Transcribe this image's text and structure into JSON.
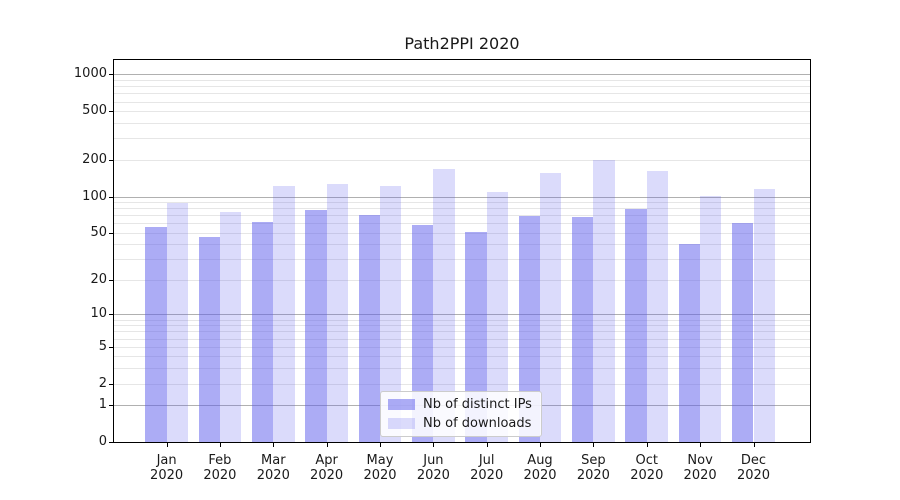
{
  "title": "Path2PPI 2020",
  "legend": {
    "items": [
      {
        "label": "Nb of distinct IPs",
        "color": "rgba(90,90,235,0.5)"
      },
      {
        "label": "Nb of downloads",
        "color": "rgba(90,90,235,0.22)"
      }
    ]
  },
  "axes": {
    "y_ticks": [
      {
        "value": 1000,
        "label": "1000"
      },
      {
        "value": 500,
        "label": "500"
      },
      {
        "value": 200,
        "label": "200"
      },
      {
        "value": 100,
        "label": "100"
      },
      {
        "value": 50,
        "label": "50"
      },
      {
        "value": 20,
        "label": "20"
      },
      {
        "value": 10,
        "label": "10"
      },
      {
        "value": 5,
        "label": "5"
      },
      {
        "value": 2,
        "label": "2"
      },
      {
        "value": 1,
        "label": "1"
      },
      {
        "value": 0,
        "label": "0"
      }
    ],
    "x_year_line": "2020"
  },
  "colors": {
    "bar_distinct_ips": "rgba(90,90,235,0.5)",
    "bar_downloads": "rgba(90,90,235,0.22)",
    "grid_major": "#b0b0b0",
    "grid_minor": "#e6e6e6",
    "axis": "#000000",
    "text": "#1a1a1a"
  },
  "chart_data": {
    "type": "bar",
    "title": "Path2PPI 2020",
    "categories": [
      "Jan 2020",
      "Feb 2020",
      "Mar 2020",
      "Apr 2020",
      "May 2020",
      "Jun 2020",
      "Jul 2020",
      "Aug 2020",
      "Sep 2020",
      "Oct 2020",
      "Nov 2020",
      "Dec 2020"
    ],
    "series": [
      {
        "name": "Nb of distinct IPs",
        "values": [
          56,
          46,
          62,
          78,
          70,
          58,
          51,
          69,
          68,
          79,
          40,
          60
        ]
      },
      {
        "name": "Nb of downloads",
        "values": [
          89,
          75,
          123,
          126,
          121,
          170,
          109,
          155,
          200,
          163,
          101,
          116
        ]
      }
    ],
    "xlabel": "",
    "ylabel": "",
    "yscale": "log1p",
    "y_tick_values": [
      0,
      1,
      2,
      5,
      10,
      20,
      50,
      100,
      200,
      500,
      1000
    ],
    "ylim": [
      0,
      1300
    ],
    "grid": "horizontal, log major+minor",
    "legend_position": "lower center"
  }
}
